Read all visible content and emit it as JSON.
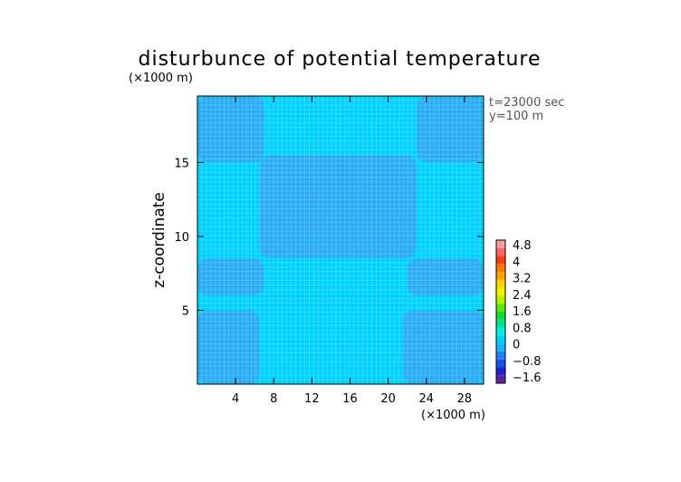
{
  "chart_data": {
    "type": "heatmap",
    "title": "disturbunce of potential temperature",
    "ylabel": "z-coordinate",
    "x_unit": "(×1000 m)",
    "y_unit": "(×1000 m)",
    "info": [
      "t=23000 sec",
      "y=100 m"
    ],
    "xlim": [
      0,
      30
    ],
    "ylim": [
      0,
      19.5
    ],
    "x_ticks": [
      4,
      8,
      12,
      16,
      20,
      24,
      28
    ],
    "y_ticks": [
      5,
      10,
      15
    ],
    "grid": true,
    "colorbar": {
      "levels": [
        -2.0,
        -1.6,
        -1.2,
        -0.8,
        -0.4,
        0,
        0.4,
        0.8,
        1.2,
        1.6,
        2.0,
        2.4,
        2.8,
        3.2,
        3.6,
        4.0,
        4.4,
        4.8,
        5.2
      ],
      "labels": [
        "4.8",
        "4",
        "3.2",
        "2.4",
        "1.6",
        "0.8",
        "0",
        "−0.8",
        "−1.6"
      ],
      "colors": [
        "#5a23a6",
        "#1e1ed2",
        "#1450eb",
        "#1e82ff",
        "#14b4ff",
        "#00d2ff",
        "#00f0dc",
        "#00e68c",
        "#14dc32",
        "#64e614",
        "#b4f000",
        "#f0f000",
        "#ffd200",
        "#ffa000",
        "#ff7800",
        "#ff3c1e",
        "#ff6464",
        "#ff9b9b"
      ]
    },
    "field_values": {
      "background": 0.15,
      "regions": [
        {
          "name": "upper-left",
          "x": [
            0,
            7
          ],
          "y": [
            15,
            19.5
          ],
          "value": 0.05
        },
        {
          "name": "upper-right",
          "x": [
            23,
            30
          ],
          "y": [
            15,
            19.5
          ],
          "value": 0.05
        },
        {
          "name": "central-cell",
          "x": [
            6.5,
            23
          ],
          "y": [
            8.5,
            15.5
          ],
          "value": 0.05
        },
        {
          "name": "mid-left",
          "x": [
            0,
            7
          ],
          "y": [
            6,
            8.5
          ],
          "value": 0.05
        },
        {
          "name": "mid-right",
          "x": [
            22,
            30
          ],
          "y": [
            6,
            8.5
          ],
          "value": 0.05
        },
        {
          "name": "bottom-left",
          "x": [
            0,
            6.5
          ],
          "y": [
            0,
            5
          ],
          "value": 0.05
        },
        {
          "name": "bottom-right",
          "x": [
            21.5,
            30
          ],
          "y": [
            0,
            5
          ],
          "value": 0.05
        }
      ]
    }
  }
}
